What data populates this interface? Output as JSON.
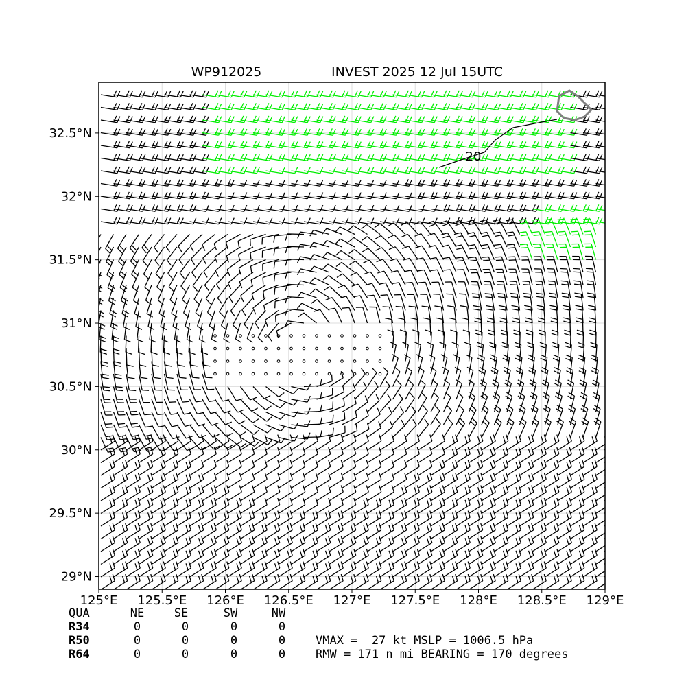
{
  "title": {
    "storm_id": "WP912025",
    "name_time": "INVEST 2025 12 Jul 15UTC"
  },
  "map": {
    "lon_range": [
      125,
      129
    ],
    "lat_range": [
      28.9,
      32.9
    ],
    "x_ticks": [
      "125°E",
      "125.5°E",
      "126°E",
      "126.5°E",
      "127°E",
      "127.5°E",
      "128°E",
      "128.5°E",
      "129°E"
    ],
    "y_ticks": [
      "29°N",
      "29.5°N",
      "30°N",
      "30.5°N",
      "31°N",
      "31.5°N",
      "32°N",
      "32.5°N"
    ],
    "grid": true,
    "contour_label": "20",
    "barb_color": "#000000",
    "high_wind_color": "#00ee00",
    "coastline_color": "#808080",
    "storm_center": {
      "lon": 126.6,
      "lat": 30.85
    }
  },
  "radii_table": {
    "header": [
      "QUA",
      "NE",
      "SE",
      "SW",
      "NW"
    ],
    "rows": [
      {
        "label": "R34",
        "values": [
          "0",
          "0",
          "0",
          "0"
        ]
      },
      {
        "label": "R50",
        "values": [
          "0",
          "0",
          "0",
          "0"
        ]
      },
      {
        "label": "R64",
        "values": [
          "0",
          "0",
          "0",
          "0"
        ]
      }
    ]
  },
  "summary": {
    "line1": "VMAX =  27 kt MSLP = 1006.5 hPa",
    "line2": "RMW = 171 n mi BEARING = 170 degrees"
  }
}
